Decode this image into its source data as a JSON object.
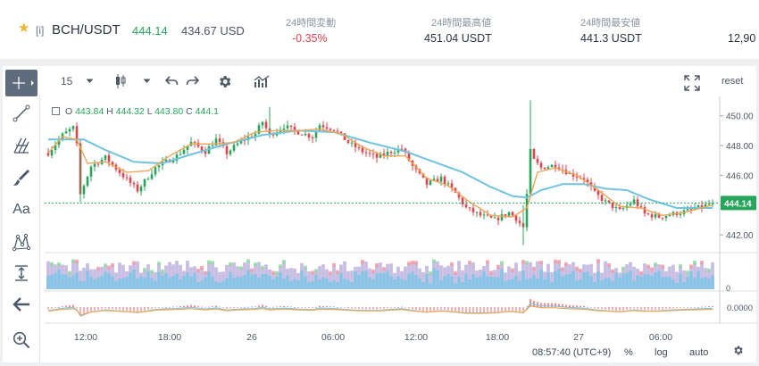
{
  "ticker": {
    "favorite_icon": "star-icon",
    "market_tag": "[i]",
    "symbol": "BCH/USDT",
    "last_price": "444.14",
    "usd_price": "434.67 USD",
    "stats": [
      {
        "label": "24時間変動",
        "value": "-0.35%"
      },
      {
        "label": "24時間最高値",
        "value": "451.04 USDT"
      },
      {
        "label": "24時間最安値",
        "value": "441.3 USDT"
      }
    ],
    "truncated_value": "12,90",
    "colors": {
      "up": "#26a65b",
      "down": "#e0454f",
      "star": "#f2b233"
    }
  },
  "toolbar": {
    "interval": "15",
    "reset_label": "reset",
    "icons": [
      "chevron-down-icon",
      "candlestick-icon",
      "chevron-down-icon",
      "undo-icon",
      "redo-icon",
      "gear-icon",
      "indicators-icon",
      "fullscreen-icon"
    ]
  },
  "left_tools": [
    "crosshair-icon",
    "trend-line-icon",
    "fork-icon",
    "brush-icon",
    "text-tool-icon",
    "pattern-icon",
    "measure-icon",
    "back-arrow-icon",
    "zoom-in-icon"
  ],
  "left_tool_text": "Aa",
  "ohlc": {
    "o_label": "O",
    "o": "443.84",
    "h_label": "H",
    "h": "444.32",
    "l_label": "L",
    "l": "443.80",
    "c_label": "C",
    "c": "444.1"
  },
  "chart_data": {
    "type": "candlestick",
    "y_ticks": [
      "450.00",
      "448.00",
      "446.00",
      "444.00",
      "442.00"
    ],
    "ylim": [
      440.8,
      451.3
    ],
    "current_price_label": "444.14",
    "current_price": 444.14,
    "x_ticks": [
      "12:00",
      "18:00",
      "26",
      "06:00",
      "12:00",
      "18:00",
      "27",
      "06:00"
    ],
    "volume_axis_label": "0",
    "oscillator_label": "0.0000",
    "price_path": [
      [
        0,
        447.5
      ],
      [
        4,
        448.7
      ],
      [
        7,
        449.2
      ],
      [
        8,
        448.0
      ],
      [
        9,
        444.7
      ],
      [
        12,
        446.6
      ],
      [
        16,
        447.2
      ],
      [
        20,
        446.2
      ],
      [
        25,
        445.0
      ],
      [
        30,
        446.5
      ],
      [
        36,
        447.3
      ],
      [
        40,
        448.2
      ],
      [
        44,
        447.6
      ],
      [
        47,
        448.4
      ],
      [
        50,
        447.5
      ],
      [
        54,
        448.3
      ],
      [
        58,
        448.8
      ],
      [
        60,
        449.6
      ],
      [
        62,
        448.7
      ],
      [
        66,
        449.3
      ],
      [
        70,
        448.9
      ],
      [
        74,
        448.6
      ],
      [
        76,
        449.4
      ],
      [
        80,
        449.1
      ],
      [
        84,
        448.2
      ],
      [
        88,
        447.6
      ],
      [
        92,
        447.2
      ],
      [
        96,
        447.6
      ],
      [
        99,
        447.8
      ],
      [
        102,
        446.6
      ],
      [
        106,
        445.4
      ],
      [
        110,
        445.8
      ],
      [
        114,
        444.8
      ],
      [
        117,
        443.8
      ],
      [
        121,
        443.3
      ],
      [
        125,
        443.0
      ],
      [
        129,
        443.5
      ],
      [
        131,
        443.1
      ],
      [
        133,
        442.5
      ],
      [
        134,
        444.7
      ],
      [
        135,
        447.6
      ],
      [
        136,
        447.0
      ],
      [
        138,
        446.5
      ],
      [
        142,
        446.7
      ],
      [
        146,
        446.1
      ],
      [
        150,
        445.8
      ],
      [
        153,
        444.8
      ],
      [
        156,
        444.2
      ],
      [
        160,
        443.6
      ],
      [
        164,
        444.3
      ],
      [
        167,
        443.4
      ],
      [
        171,
        443.2
      ],
      [
        175,
        443.4
      ],
      [
        179,
        443.6
      ],
      [
        183,
        443.9
      ],
      [
        186,
        444.14
      ]
    ],
    "ma_fast": [
      [
        0,
        447.5
      ],
      [
        4,
        448.6
      ],
      [
        8,
        448.4
      ],
      [
        11,
        446.8
      ],
      [
        16,
        446.9
      ],
      [
        22,
        446.2
      ],
      [
        28,
        446.3
      ],
      [
        34,
        447.3
      ],
      [
        40,
        448.1
      ],
      [
        46,
        448.1
      ],
      [
        52,
        448.2
      ],
      [
        58,
        448.9
      ],
      [
        64,
        449.0
      ],
      [
        70,
        449.0
      ],
      [
        76,
        449.1
      ],
      [
        82,
        448.8
      ],
      [
        88,
        447.9
      ],
      [
        94,
        447.3
      ],
      [
        100,
        447.3
      ],
      [
        106,
        445.8
      ],
      [
        112,
        445.3
      ],
      [
        118,
        444.2
      ],
      [
        124,
        443.3
      ],
      [
        130,
        443.2
      ],
      [
        134,
        443.8
      ],
      [
        137,
        446.2
      ],
      [
        142,
        446.5
      ],
      [
        148,
        446.0
      ],
      [
        154,
        445.0
      ],
      [
        160,
        443.9
      ],
      [
        166,
        443.8
      ],
      [
        172,
        443.3
      ],
      [
        178,
        443.5
      ],
      [
        186,
        444.0
      ]
    ],
    "ma_slow": [
      [
        0,
        448.4
      ],
      [
        10,
        448.4
      ],
      [
        16,
        447.7
      ],
      [
        24,
        446.9
      ],
      [
        32,
        446.8
      ],
      [
        40,
        447.4
      ],
      [
        50,
        448.1
      ],
      [
        60,
        448.7
      ],
      [
        70,
        449.0
      ],
      [
        80,
        448.9
      ],
      [
        90,
        448.2
      ],
      [
        100,
        447.6
      ],
      [
        108,
        446.9
      ],
      [
        116,
        446.2
      ],
      [
        124,
        445.2
      ],
      [
        130,
        444.6
      ],
      [
        134,
        444.5
      ],
      [
        138,
        445.0
      ],
      [
        144,
        445.4
      ],
      [
        150,
        445.4
      ],
      [
        156,
        445.1
      ],
      [
        162,
        445.0
      ],
      [
        168,
        444.4
      ],
      [
        176,
        443.8
      ],
      [
        186,
        443.8
      ]
    ]
  }
}
